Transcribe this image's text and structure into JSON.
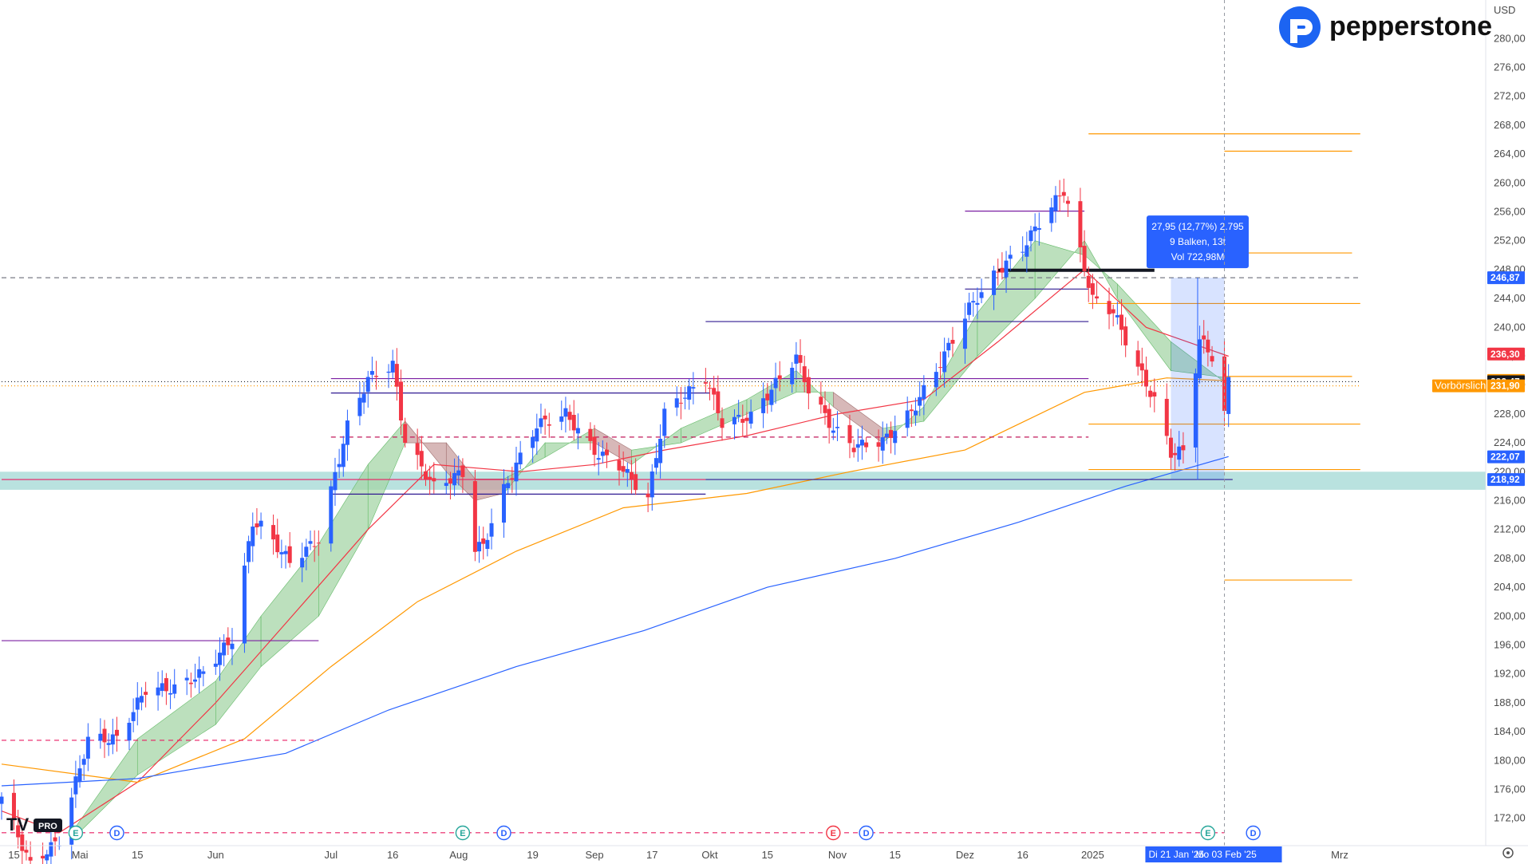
{
  "header": {
    "currency": "USD",
    "brand": "pepperstone",
    "watermark": "PRO"
  },
  "colors": {
    "up": "#2962ff",
    "down": "#f23645",
    "sma_red": "#f23645",
    "sma_orange": "#ff9800",
    "sma_blue": "#2962ff",
    "cloud_up": "#a5d6a7",
    "cloud_down": "#c9a0a0",
    "support_band": "#80cbc4",
    "hline_purple": "#311b92",
    "hline_orange": "#ff9800",
    "hline_pink": "#e91e63",
    "price_current": "#131722"
  },
  "price_badges": [
    {
      "label": "246,87",
      "value": 246.87,
      "color": "#2962ff"
    },
    {
      "label": "236,30",
      "value": 236.3,
      "color": "#f23645"
    },
    {
      "label": "232,65",
      "value": 232.65,
      "color": "#ff9800"
    },
    {
      "label": "232,47",
      "value": 232.47,
      "color": "#131722"
    },
    {
      "label": "231,90",
      "value": 231.9,
      "color": "#ff9800"
    },
    {
      "label": "222,07",
      "value": 222.07,
      "color": "#2962ff"
    },
    {
      "label": "218,92",
      "value": 218.92,
      "color": "#2962ff"
    }
  ],
  "premarket_label": "Vorbörslich",
  "measure_box": {
    "line1": "27,95 (12,77%) 2.795",
    "line2": "9 Balken, 13t",
    "line3": "Vol 722,98M"
  },
  "range_labels": {
    "start": "Di 21 Jan '25",
    "end": "Mo 03 Feb '25"
  },
  "events": [
    {
      "kind": "E",
      "date": "2024-04-30",
      "color": "#26a69a"
    },
    {
      "kind": "D",
      "date": "2024-05-10",
      "color": "#2962ff"
    },
    {
      "kind": "E",
      "date": "2024-08-02",
      "color": "#26a69a"
    },
    {
      "kind": "D",
      "date": "2024-08-12",
      "color": "#2962ff"
    },
    {
      "kind": "E",
      "date": "2024-10-31",
      "color": "#f23645"
    },
    {
      "kind": "D",
      "date": "2024-11-08",
      "color": "#2962ff"
    },
    {
      "kind": "E",
      "date": "2025-01-30",
      "color": "#26a69a"
    },
    {
      "kind": "D",
      "date": "2025-02-10",
      "color": "#2962ff"
    }
  ],
  "chart_data": {
    "type": "candlestick",
    "title": "",
    "y_range": [
      168,
      282
    ],
    "x_range": [
      "2024-04-12",
      "2025-03-08"
    ],
    "y_ticks": [
      172,
      176,
      180,
      184,
      188,
      192,
      196,
      200,
      204,
      208,
      212,
      216,
      220,
      224,
      228,
      232,
      236,
      240,
      244,
      248,
      252,
      256,
      260,
      264,
      268,
      272,
      276,
      280
    ],
    "y_tick_labels": [
      "172,00",
      "176,00",
      "180,00",
      "184,00",
      "188,00",
      "192,00",
      "196,00",
      "200,00",
      "204,00",
      "208,00",
      "212,00",
      "216,00",
      "220,00",
      "224,00",
      "228,00",
      "232,00",
      "236,00",
      "240,00",
      "244,00",
      "248,00",
      "252,00",
      "256,00",
      "260,00",
      "264,00",
      "268,00",
      "272,00",
      "276,00",
      "280,00"
    ],
    "x_ticks": [
      {
        "label": "15",
        "date": "2024-04-15"
      },
      {
        "label": "Mai",
        "date": "2024-05-01"
      },
      {
        "label": "15",
        "date": "2024-05-15"
      },
      {
        "label": "Jun",
        "date": "2024-06-03"
      },
      {
        "label": "Jul",
        "date": "2024-07-01"
      },
      {
        "label": "16",
        "date": "2024-07-16"
      },
      {
        "label": "Aug",
        "date": "2024-08-01"
      },
      {
        "label": "19",
        "date": "2024-08-19"
      },
      {
        "label": "Sep",
        "date": "2024-09-03"
      },
      {
        "label": "17",
        "date": "2024-09-17"
      },
      {
        "label": "Okt",
        "date": "2024-10-01"
      },
      {
        "label": "15",
        "date": "2024-10-15"
      },
      {
        "label": "Nov",
        "date": "2024-11-01"
      },
      {
        "label": "15",
        "date": "2024-11-15"
      },
      {
        "label": "Dez",
        "date": "2024-12-02"
      },
      {
        "label": "16",
        "date": "2024-12-16"
      },
      {
        "label": "2025",
        "date": "2025-01-02"
      },
      {
        "label": "Mrz",
        "date": "2025-03-03"
      }
    ],
    "anchors": [
      [
        "2024-04-12",
        175.0
      ],
      [
        "2024-04-19",
        165.5
      ],
      [
        "2024-04-26",
        169.0
      ],
      [
        "2024-05-03",
        183.0
      ],
      [
        "2024-05-10",
        183.0
      ],
      [
        "2024-05-17",
        189.9
      ],
      [
        "2024-05-24",
        190.0
      ],
      [
        "2024-05-31",
        192.2
      ],
      [
        "2024-06-07",
        196.9
      ],
      [
        "2024-06-12",
        213.0
      ],
      [
        "2024-06-14",
        212.5
      ],
      [
        "2024-06-21",
        207.5
      ],
      [
        "2024-06-28",
        210.6
      ],
      [
        "2024-07-05",
        226.3
      ],
      [
        "2024-07-10",
        232.9
      ],
      [
        "2024-07-16",
        234.8
      ],
      [
        "2024-07-19",
        224.3
      ],
      [
        "2024-07-26",
        217.9
      ],
      [
        "2024-08-02",
        219.9
      ],
      [
        "2024-08-05",
        209.3
      ],
      [
        "2024-08-07",
        209.8
      ],
      [
        "2024-08-12",
        217.5
      ],
      [
        "2024-08-20",
        226.5
      ],
      [
        "2024-08-27",
        228.0
      ],
      [
        "2024-09-03",
        222.8
      ],
      [
        "2024-09-09",
        220.9
      ],
      [
        "2024-09-16",
        216.3
      ],
      [
        "2024-09-20",
        228.2
      ],
      [
        "2024-09-30",
        233.0
      ],
      [
        "2024-10-04",
        226.8
      ],
      [
        "2024-10-11",
        227.6
      ],
      [
        "2024-10-17",
        232.2
      ],
      [
        "2024-10-22",
        235.9
      ],
      [
        "2024-10-25",
        231.4
      ],
      [
        "2024-10-31",
        225.9
      ],
      [
        "2024-11-05",
        223.5
      ],
      [
        "2024-11-12",
        224.2
      ],
      [
        "2024-11-19",
        228.3
      ],
      [
        "2024-11-26",
        235.1
      ],
      [
        "2024-12-03",
        242.7
      ],
      [
        "2024-12-10",
        247.8
      ],
      [
        "2024-12-16",
        251.0
      ],
      [
        "2024-12-20",
        254.5
      ],
      [
        "2024-12-26",
        259.0
      ],
      [
        "2025-01-02",
        243.9
      ],
      [
        "2025-01-07",
        242.2
      ],
      [
        "2025-01-13",
        234.4
      ],
      [
        "2025-01-17",
        229.9
      ],
      [
        "2025-01-21",
        222.6
      ],
      [
        "2025-01-24",
        222.8
      ],
      [
        "2025-01-28",
        238.3
      ],
      [
        "2025-01-31",
        236.0
      ],
      [
        "2025-02-03",
        228.0
      ],
      [
        "2025-02-04",
        232.5
      ]
    ],
    "series": [
      {
        "name": "SMA 20",
        "color": "#f23645",
        "anchors": [
          [
            "2024-04-12",
            173
          ],
          [
            "2024-04-26",
            170
          ],
          [
            "2024-05-15",
            177
          ],
          [
            "2024-06-03",
            188
          ],
          [
            "2024-06-20",
            199
          ],
          [
            "2024-07-10",
            212
          ],
          [
            "2024-07-26",
            221
          ],
          [
            "2024-08-16",
            220
          ],
          [
            "2024-09-03",
            221
          ],
          [
            "2024-09-20",
            223
          ],
          [
            "2024-10-10",
            225
          ],
          [
            "2024-11-01",
            228
          ],
          [
            "2024-11-22",
            230
          ],
          [
            "2024-12-10",
            238
          ],
          [
            "2024-12-31",
            248
          ],
          [
            "2025-01-15",
            240
          ],
          [
            "2025-02-04",
            236
          ]
        ]
      },
      {
        "name": "SMA 50",
        "color": "#ff9800",
        "anchors": [
          [
            "2024-04-12",
            179.5
          ],
          [
            "2024-05-15",
            177
          ],
          [
            "2024-06-10",
            183
          ],
          [
            "2024-07-01",
            193
          ],
          [
            "2024-07-22",
            202
          ],
          [
            "2024-08-15",
            209
          ],
          [
            "2024-09-10",
            215
          ],
          [
            "2024-10-10",
            217
          ],
          [
            "2024-11-04",
            220
          ],
          [
            "2024-12-02",
            223
          ],
          [
            "2024-12-31",
            231
          ],
          [
            "2025-01-20",
            233
          ],
          [
            "2025-02-04",
            232.6
          ]
        ]
      },
      {
        "name": "SMA 200",
        "color": "#2962ff",
        "anchors": [
          [
            "2024-04-12",
            176.5
          ],
          [
            "2024-05-15",
            177.5
          ],
          [
            "2024-06-20",
            181
          ],
          [
            "2024-07-15",
            187
          ],
          [
            "2024-08-15",
            193
          ],
          [
            "2024-09-15",
            198
          ],
          [
            "2024-10-15",
            204
          ],
          [
            "2024-11-15",
            208
          ],
          [
            "2024-12-15",
            213
          ],
          [
            "2025-01-10",
            218
          ],
          [
            "2025-02-04",
            222.1
          ]
        ]
      }
    ],
    "cloud": [
      [
        "2024-04-29",
        169,
        170
      ],
      [
        "2024-05-15",
        178,
        183
      ],
      [
        "2024-06-03",
        185,
        191
      ],
      [
        "2024-06-14",
        193,
        200
      ],
      [
        "2024-06-28",
        200,
        210
      ],
      [
        "2024-07-10",
        212,
        221
      ],
      [
        "2024-07-19",
        224,
        227
      ],
      [
        "2024-07-29",
        224,
        220
      ],
      [
        "2024-08-05",
        219,
        216
      ],
      [
        "2024-08-12",
        219,
        217
      ],
      [
        "2024-08-22",
        222,
        224
      ],
      [
        "2024-09-03",
        226,
        224
      ],
      [
        "2024-09-12",
        223,
        221
      ],
      [
        "2024-09-24",
        224,
        226
      ],
      [
        "2024-10-10",
        228,
        230
      ],
      [
        "2024-10-22",
        231,
        234
      ],
      [
        "2024-10-31",
        231,
        229
      ],
      [
        "2024-11-12",
        226,
        224
      ],
      [
        "2024-11-22",
        227,
        229
      ],
      [
        "2024-12-05",
        236,
        242
      ],
      [
        "2024-12-19",
        244,
        252
      ],
      [
        "2024-12-31",
        252,
        250
      ],
      [
        "2025-01-08",
        244,
        246
      ],
      [
        "2025-01-21",
        234,
        238
      ],
      [
        "2025-02-04",
        233,
        232
      ]
    ],
    "horizontal_levels": [
      {
        "value": 246.87,
        "color": "#787b86",
        "style": "dashed",
        "from": "2024-04-12",
        "to": "2025-03-08"
      },
      {
        "value": 232.47,
        "color": "#131722",
        "style": "dotted",
        "from": "2024-04-12",
        "to": "2025-03-08"
      },
      {
        "value": 231.9,
        "color": "#ff9800",
        "style": "dotted",
        "from": "2024-04-12",
        "to": "2025-03-08"
      },
      {
        "value": 218.92,
        "color": "#e91e63",
        "style": "solid",
        "from": "2024-04-12",
        "to": "2024-09-30"
      },
      {
        "value": 218.92,
        "color": "#311b92",
        "style": "solid",
        "from": "2024-09-30",
        "to": "2025-02-05"
      },
      {
        "value": 196.6,
        "color": "#7b1fa2",
        "style": "solid",
        "from": "2024-04-12",
        "to": "2024-06-28"
      },
      {
        "value": 182.8,
        "color": "#e91e63",
        "style": "dashed",
        "from": "2024-04-12",
        "to": "2024-06-28"
      },
      {
        "value": 170.0,
        "color": "#e91e63",
        "style": "dashed",
        "from": "2024-04-12",
        "to": "2025-02-03"
      },
      {
        "value": 240.8,
        "color": "#311b92",
        "style": "solid",
        "from": "2024-09-30",
        "to": "2025-01-01"
      },
      {
        "value": 247.9,
        "color": "#131722",
        "style": "thick",
        "from": "2024-12-10",
        "to": "2025-01-17"
      },
      {
        "value": 224.8,
        "color": "#c2185b",
        "style": "dashed",
        "from": "2024-07-01",
        "to": "2025-01-01"
      },
      {
        "value": 230.9,
        "color": "#311b92",
        "style": "solid",
        "from": "2024-07-01",
        "to": "2024-10-01"
      },
      {
        "value": 232.9,
        "color": "#7b1fa2",
        "style": "solid",
        "from": "2024-07-01",
        "to": "2025-01-01"
      },
      {
        "value": 216.9,
        "color": "#311b92",
        "style": "solid",
        "from": "2024-07-01",
        "to": "2024-09-30"
      },
      {
        "value": 266.8,
        "color": "#ff9800",
        "style": "solid",
        "from": "2025-01-01",
        "to": "2025-03-08"
      },
      {
        "value": 264.4,
        "color": "#ff9800",
        "style": "solid",
        "from": "2025-02-03",
        "to": "2025-03-06"
      },
      {
        "value": 250.3,
        "color": "#ff9800",
        "style": "solid",
        "from": "2025-02-03",
        "to": "2025-03-06"
      },
      {
        "value": 243.3,
        "color": "#ff9800",
        "style": "solid",
        "from": "2025-01-01",
        "to": "2025-03-08"
      },
      {
        "value": 233.2,
        "color": "#ff9800",
        "style": "solid",
        "from": "2025-02-03",
        "to": "2025-03-06"
      },
      {
        "value": 226.6,
        "color": "#ff9800",
        "style": "solid",
        "from": "2025-01-01",
        "to": "2025-03-08"
      },
      {
        "value": 220.3,
        "color": "#ff9800",
        "style": "solid",
        "from": "2025-01-01",
        "to": "2025-03-08"
      },
      {
        "value": 205.0,
        "color": "#ff9800",
        "style": "solid",
        "from": "2025-02-03",
        "to": "2025-03-06"
      },
      {
        "value": 256.1,
        "color": "#7b1fa2",
        "style": "solid",
        "from": "2024-12-02",
        "to": "2024-12-31"
      },
      {
        "value": 245.3,
        "color": "#311b92",
        "style": "solid",
        "from": "2024-12-02",
        "to": "2025-01-01"
      }
    ],
    "support_zone": [
      217.5,
      220.0
    ],
    "measure": {
      "start": "2025-01-21",
      "end": "2025-02-03",
      "low": 218.9,
      "high": 246.87
    },
    "cursor_date": "2025-02-03"
  }
}
